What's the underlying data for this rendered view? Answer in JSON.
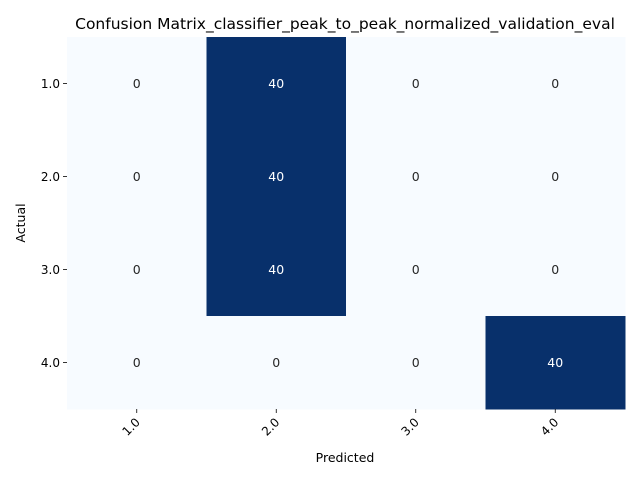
{
  "chart_data": {
    "type": "heatmap",
    "title": "Confusion Matrix_classifier_peak_to_peak_normalized_validation_eval",
    "xlabel": "Predicted",
    "ylabel": "Actual",
    "x_tick_labels": [
      "1.0",
      "2.0",
      "3.0",
      "4.0"
    ],
    "y_tick_labels": [
      "1.0",
      "2.0",
      "3.0",
      "4.0"
    ],
    "matrix": [
      [
        0,
        40,
        0,
        0
      ],
      [
        0,
        40,
        0,
        0
      ],
      [
        0,
        40,
        0,
        0
      ],
      [
        0,
        0,
        0,
        40
      ]
    ],
    "vmin": 0,
    "vmax": 40,
    "colormap": "Blues",
    "color_low": "#f7fbff",
    "color_high": "#08306b",
    "annotation_color_low": "#262626",
    "annotation_color_high": "#ffffff",
    "colorbar": false
  }
}
